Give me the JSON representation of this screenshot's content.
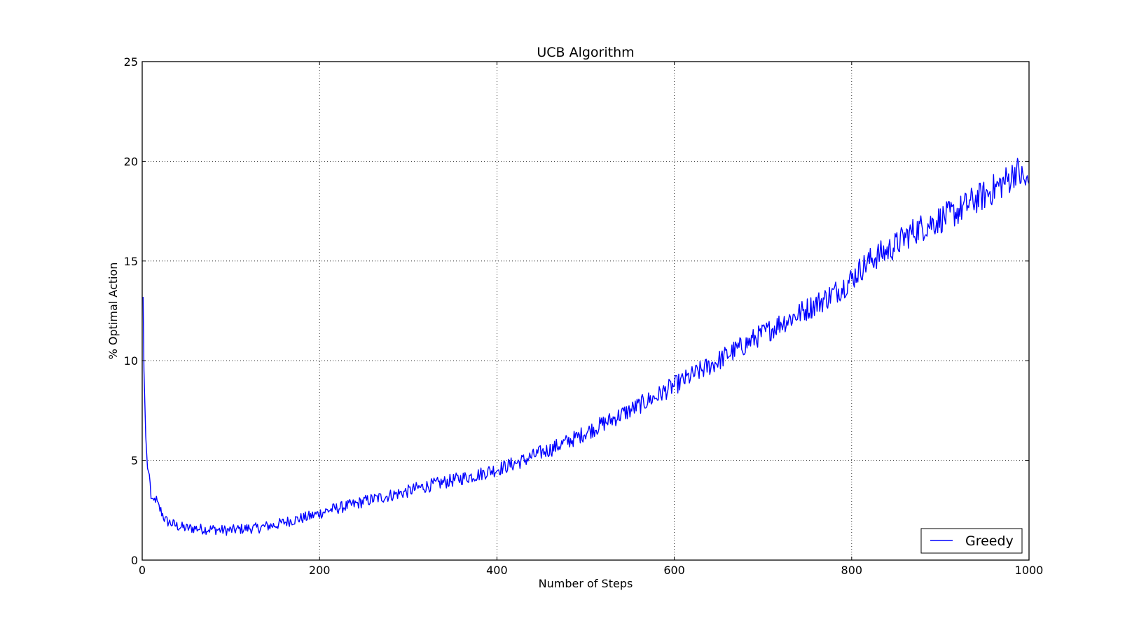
{
  "chart_data": {
    "type": "line",
    "title": "UCB Algorithm",
    "xlabel": "Number of Steps",
    "ylabel": "% Optimal Action",
    "xlim": [
      0,
      1000
    ],
    "ylim": [
      0,
      25
    ],
    "xticks": [
      0,
      200,
      400,
      600,
      800,
      1000
    ],
    "yticks": [
      0,
      5,
      10,
      15,
      20,
      25
    ],
    "grid": true,
    "legend_position": "lower-right",
    "series": [
      {
        "name": "Greedy",
        "color": "#0000ff",
        "points": [
          [
            1,
            13.2
          ],
          [
            2,
            9.5
          ],
          [
            4,
            6.2
          ],
          [
            6,
            4.6
          ],
          [
            8,
            4.3
          ],
          [
            10,
            3.2
          ],
          [
            12,
            2.8
          ],
          [
            15,
            3.1
          ],
          [
            18,
            2.7
          ],
          [
            22,
            2.4
          ],
          [
            26,
            2.0
          ],
          [
            30,
            1.9
          ],
          [
            35,
            1.8
          ],
          [
            40,
            1.7
          ],
          [
            45,
            1.65
          ],
          [
            50,
            1.6
          ],
          [
            60,
            1.6
          ],
          [
            70,
            1.55
          ],
          [
            80,
            1.55
          ],
          [
            90,
            1.5
          ],
          [
            100,
            1.5
          ],
          [
            110,
            1.55
          ],
          [
            120,
            1.6
          ],
          [
            130,
            1.6
          ],
          [
            140,
            1.7
          ],
          [
            150,
            1.75
          ],
          [
            160,
            1.9
          ],
          [
            170,
            2.0
          ],
          [
            180,
            2.1
          ],
          [
            190,
            2.2
          ],
          [
            200,
            2.35
          ],
          [
            210,
            2.5
          ],
          [
            220,
            2.6
          ],
          [
            230,
            2.7
          ],
          [
            240,
            2.8
          ],
          [
            250,
            2.95
          ],
          [
            260,
            3.05
          ],
          [
            270,
            3.15
          ],
          [
            280,
            3.25
          ],
          [
            290,
            3.35
          ],
          [
            300,
            3.45
          ],
          [
            310,
            3.6
          ],
          [
            320,
            3.7
          ],
          [
            330,
            3.8
          ],
          [
            340,
            3.9
          ],
          [
            350,
            4.0
          ],
          [
            360,
            4.1
          ],
          [
            370,
            4.2
          ],
          [
            380,
            4.3
          ],
          [
            390,
            4.45
          ],
          [
            400,
            4.55
          ],
          [
            410,
            4.7
          ],
          [
            420,
            4.85
          ],
          [
            430,
            5.0
          ],
          [
            440,
            5.2
          ],
          [
            450,
            5.4
          ],
          [
            460,
            5.55
          ],
          [
            470,
            5.75
          ],
          [
            480,
            5.95
          ],
          [
            490,
            6.15
          ],
          [
            500,
            6.4
          ],
          [
            510,
            6.6
          ],
          [
            520,
            6.85
          ],
          [
            530,
            7.05
          ],
          [
            540,
            7.3
          ],
          [
            550,
            7.5
          ],
          [
            560,
            7.75
          ],
          [
            570,
            8.0
          ],
          [
            580,
            8.2
          ],
          [
            590,
            8.5
          ],
          [
            600,
            8.75
          ],
          [
            610,
            9.0
          ],
          [
            620,
            9.25
          ],
          [
            630,
            9.5
          ],
          [
            640,
            9.75
          ],
          [
            650,
            10.0
          ],
          [
            660,
            10.3
          ],
          [
            670,
            10.55
          ],
          [
            680,
            10.8
          ],
          [
            690,
            11.1
          ],
          [
            700,
            11.35
          ],
          [
            710,
            11.6
          ],
          [
            720,
            11.9
          ],
          [
            730,
            12.1
          ],
          [
            740,
            12.35
          ],
          [
            750,
            12.6
          ],
          [
            760,
            12.85
          ],
          [
            770,
            13.1
          ],
          [
            780,
            13.4
          ],
          [
            790,
            13.7
          ],
          [
            800,
            14.1
          ],
          [
            810,
            14.6
          ],
          [
            820,
            15.0
          ],
          [
            830,
            15.3
          ],
          [
            840,
            15.5
          ],
          [
            850,
            15.8
          ],
          [
            860,
            16.2
          ],
          [
            870,
            16.5
          ],
          [
            880,
            16.7
          ],
          [
            890,
            16.9
          ],
          [
            900,
            17.1
          ],
          [
            910,
            17.3
          ],
          [
            920,
            17.5
          ],
          [
            930,
            17.8
          ],
          [
            940,
            18.1
          ],
          [
            950,
            18.3
          ],
          [
            960,
            18.6
          ],
          [
            970,
            18.9
          ],
          [
            980,
            19.2
          ],
          [
            985,
            19.6
          ],
          [
            990,
            19.3
          ],
          [
            995,
            19.0
          ],
          [
            1000,
            18.8
          ]
        ]
      }
    ]
  }
}
